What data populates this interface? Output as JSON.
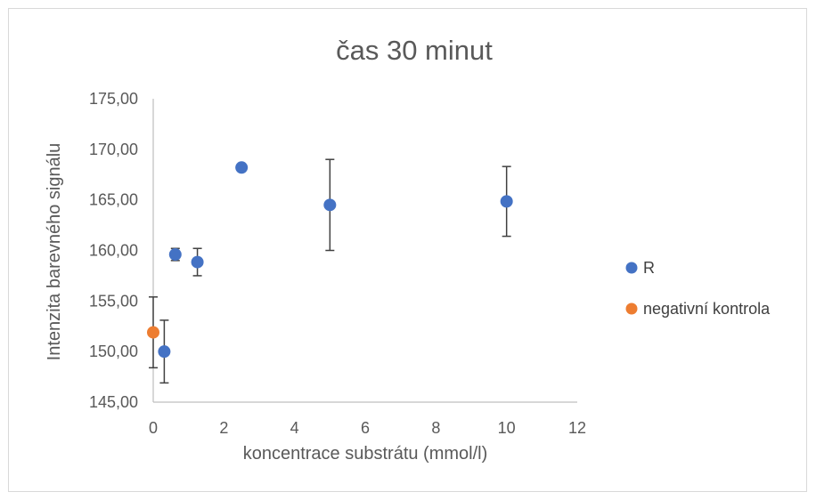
{
  "chart_data": {
    "type": "scatter",
    "title": "čas 30 minut",
    "xlabel": "koncentrace substrátu (mmol/l)",
    "ylabel": "Intenzita barevného signálu",
    "xlim": [
      0,
      12
    ],
    "ylim": [
      145,
      175
    ],
    "xticks": [
      0,
      2,
      4,
      6,
      8,
      10,
      12
    ],
    "xtick_labels": [
      "0",
      "2",
      "4",
      "6",
      "8",
      "10",
      "12"
    ],
    "yticks": [
      145,
      150,
      155,
      160,
      165,
      170,
      175
    ],
    "ytick_labels": [
      "145,00",
      "150,00",
      "155,00",
      "160,00",
      "165,00",
      "170,00",
      "175,00"
    ],
    "grid": false,
    "legend_position": "right",
    "series": [
      {
        "name": "R",
        "color": "#4472c4",
        "points": [
          {
            "x": 0.3125,
            "y": 150.0,
            "err": 3.1
          },
          {
            "x": 0.625,
            "y": 159.6,
            "err": 0.6
          },
          {
            "x": 1.25,
            "y": 158.85,
            "err": 1.35
          },
          {
            "x": 2.5,
            "y": 168.2,
            "err": 0
          },
          {
            "x": 5,
            "y": 164.5,
            "err": 4.5
          },
          {
            "x": 10,
            "y": 164.85,
            "err": 3.45
          }
        ]
      },
      {
        "name": "negativní kontrola",
        "color": "#ed7d31",
        "points": [
          {
            "x": 0,
            "y": 151.9,
            "err": 3.5
          }
        ]
      }
    ]
  }
}
